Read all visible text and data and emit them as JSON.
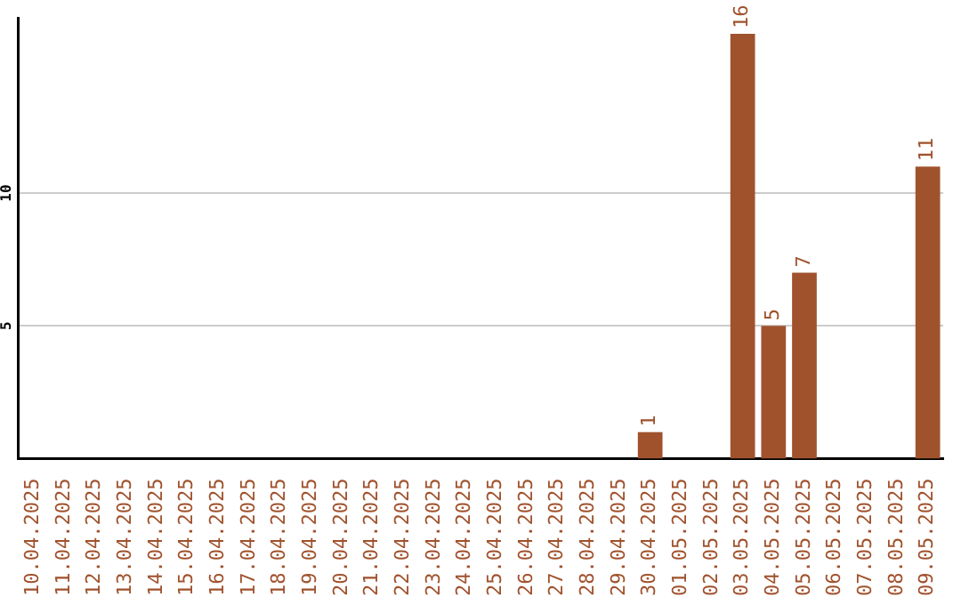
{
  "chart_data": {
    "type": "bar",
    "categories": [
      "10.04.2025",
      "11.04.2025",
      "12.04.2025",
      "13.04.2025",
      "14.04.2025",
      "15.04.2025",
      "16.04.2025",
      "17.04.2025",
      "18.04.2025",
      "19.04.2025",
      "20.04.2025",
      "21.04.2025",
      "22.04.2025",
      "23.04.2025",
      "24.04.2025",
      "25.04.2025",
      "26.04.2025",
      "27.04.2025",
      "28.04.2025",
      "29.04.2025",
      "30.04.2025",
      "01.05.2025",
      "02.05.2025",
      "03.05.2025",
      "04.05.2025",
      "05.05.2025",
      "06.05.2025",
      "07.05.2025",
      "08.05.2025",
      "09.05.2025"
    ],
    "values": [
      0,
      0,
      0,
      0,
      0,
      0,
      0,
      0,
      0,
      0,
      0,
      0,
      0,
      0,
      0,
      0,
      0,
      0,
      0,
      0,
      1,
      0,
      0,
      16,
      5,
      7,
      0,
      0,
      0,
      11
    ],
    "value_labels": [
      null,
      null,
      null,
      null,
      null,
      null,
      null,
      null,
      null,
      null,
      null,
      null,
      null,
      null,
      null,
      null,
      null,
      null,
      null,
      null,
      "1",
      null,
      null,
      "16",
      "5",
      "7",
      null,
      null,
      null,
      "11"
    ],
    "color": "#a0522d",
    "ylim": [
      0,
      16.6
    ],
    "yticks": [
      5,
      10
    ],
    "grid": "y",
    "legend": false
  }
}
